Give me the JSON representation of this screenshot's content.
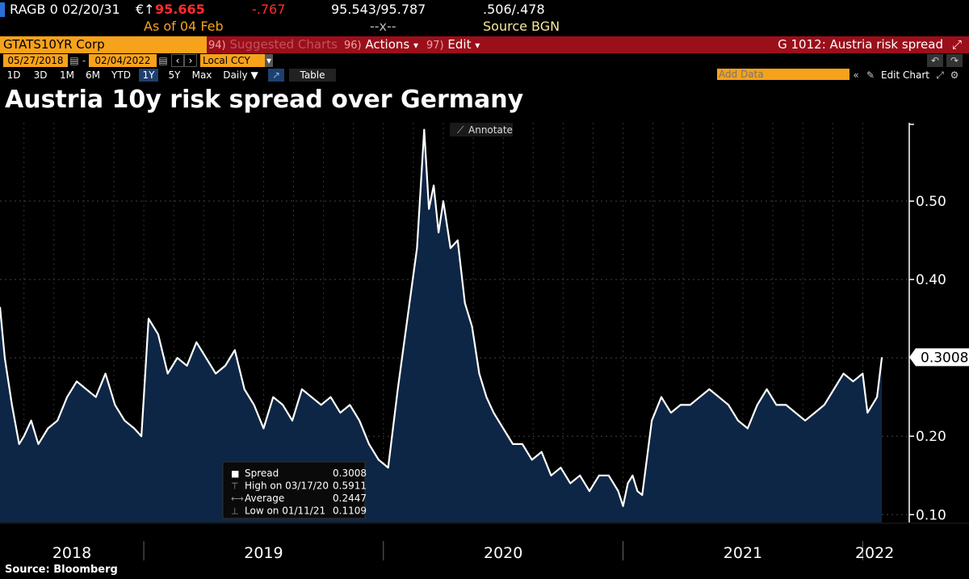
{
  "ticker": {
    "symbol": "RAGB 0 02/20/31",
    "currency_arrow": "€↑",
    "price": "95.665",
    "change": "-.767",
    "bid_ask": "95.543/95.787",
    "yields": ".506/.478",
    "as_of": "As of 04 Feb",
    "size": "--x--",
    "source": "Source BGN"
  },
  "toolbar": {
    "security": "GTATS10YR Corp",
    "suggested_num": "94)",
    "suggested_label": "Suggested Charts",
    "actions_num": "96)",
    "actions_label": "Actions",
    "edit_num": "97)",
    "edit_label": "Edit",
    "chart_id": "G 1012: Austria risk spread",
    "start_date": "05/27/2018",
    "end_date": "02/04/2022",
    "currency": "Local CCY",
    "timeframes": [
      "1D",
      "3D",
      "1M",
      "6M",
      "YTD",
      "1Y",
      "5Y",
      "Max"
    ],
    "active_timeframe": "1Y",
    "frequency": "Daily ▼",
    "table_label": "Table",
    "add_data_placeholder": "Add Data",
    "edit_chart": "Edit Chart",
    "annotate": "Annotate"
  },
  "colors": {
    "ticker_price": "#ff2d2d",
    "accent_orange": "#f7a21b",
    "bar_red": "#9b0f1a",
    "area_fill": "#0e2645",
    "line": "#ffffff"
  },
  "footer": {
    "source": "Source: Bloomberg"
  },
  "chart_data": {
    "type": "area",
    "title": "Austria 10y risk spread over Germany",
    "xlabel": "",
    "ylabel": "",
    "ylim": [
      0.09,
      0.6
    ],
    "xlim": [
      2018.4,
      2022.1
    ],
    "yticks": [
      0.1,
      0.2,
      0.3,
      0.4,
      0.5
    ],
    "ytick_labels": [
      "0.10",
      "0.20",
      "0.30",
      "0.40",
      "0.50"
    ],
    "year_labels": [
      {
        "label": "2018",
        "center": 2018.7
      },
      {
        "label": "2019",
        "center": 2019.5
      },
      {
        "label": "2020",
        "center": 2020.5
      },
      {
        "label": "2021",
        "center": 2021.5
      },
      {
        "label": "2022",
        "center": 2022.05
      }
    ],
    "year_boundaries": [
      2019.0,
      2020.0,
      2021.0,
      2022.0
    ],
    "last_value_label": "0.3008",
    "legend": [
      {
        "label": "Spread",
        "value": "0.3008"
      },
      {
        "label": "High on 03/17/20",
        "value": "0.5911"
      },
      {
        "label": "Average",
        "value": "0.2447"
      },
      {
        "label": "Low on 01/11/21",
        "value": "0.1109"
      }
    ],
    "series": [
      {
        "name": "Spread",
        "x": [
          2018.4,
          2018.42,
          2018.45,
          2018.48,
          2018.5,
          2018.53,
          2018.56,
          2018.6,
          2018.64,
          2018.68,
          2018.72,
          2018.76,
          2018.8,
          2018.84,
          2018.88,
          2018.92,
          2018.96,
          2018.99,
          2019.0,
          2019.02,
          2019.06,
          2019.1,
          2019.14,
          2019.18,
          2019.22,
          2019.26,
          2019.3,
          2019.34,
          2019.38,
          2019.42,
          2019.46,
          2019.5,
          2019.54,
          2019.58,
          2019.62,
          2019.66,
          2019.7,
          2019.74,
          2019.78,
          2019.82,
          2019.86,
          2019.9,
          2019.94,
          2019.98,
          2020.02,
          2020.06,
          2020.1,
          2020.14,
          2020.17,
          2020.19,
          2020.21,
          2020.23,
          2020.25,
          2020.28,
          2020.31,
          2020.34,
          2020.37,
          2020.4,
          2020.43,
          2020.46,
          2020.5,
          2020.54,
          2020.58,
          2020.62,
          2020.66,
          2020.7,
          2020.74,
          2020.78,
          2020.82,
          2020.86,
          2020.9,
          2020.94,
          2020.98,
          2021.0,
          2021.02,
          2021.04,
          2021.06,
          2021.08,
          2021.12,
          2021.16,
          2021.2,
          2021.24,
          2021.28,
          2021.32,
          2021.36,
          2021.4,
          2021.44,
          2021.48,
          2021.52,
          2021.56,
          2021.6,
          2021.64,
          2021.68,
          2021.72,
          2021.76,
          2021.8,
          2021.84,
          2021.88,
          2021.92,
          2021.96,
          2022.0,
          2022.02,
          2022.04,
          2022.06,
          2022.08
        ],
        "values": [
          0.365,
          0.3,
          0.24,
          0.19,
          0.2,
          0.22,
          0.19,
          0.21,
          0.22,
          0.25,
          0.27,
          0.26,
          0.25,
          0.28,
          0.24,
          0.22,
          0.21,
          0.2,
          0.25,
          0.35,
          0.33,
          0.28,
          0.3,
          0.29,
          0.32,
          0.3,
          0.28,
          0.29,
          0.31,
          0.26,
          0.24,
          0.21,
          0.25,
          0.24,
          0.22,
          0.26,
          0.25,
          0.24,
          0.25,
          0.23,
          0.24,
          0.22,
          0.19,
          0.17,
          0.16,
          0.26,
          0.35,
          0.44,
          0.5911,
          0.49,
          0.52,
          0.46,
          0.5,
          0.44,
          0.45,
          0.37,
          0.34,
          0.28,
          0.25,
          0.23,
          0.21,
          0.19,
          0.19,
          0.17,
          0.18,
          0.15,
          0.16,
          0.14,
          0.15,
          0.13,
          0.15,
          0.15,
          0.13,
          0.1109,
          0.14,
          0.15,
          0.13,
          0.125,
          0.22,
          0.25,
          0.23,
          0.24,
          0.24,
          0.25,
          0.26,
          0.25,
          0.24,
          0.22,
          0.21,
          0.24,
          0.26,
          0.24,
          0.24,
          0.23,
          0.22,
          0.23,
          0.24,
          0.26,
          0.28,
          0.27,
          0.28,
          0.23,
          0.24,
          0.25,
          0.3008
        ]
      }
    ]
  }
}
